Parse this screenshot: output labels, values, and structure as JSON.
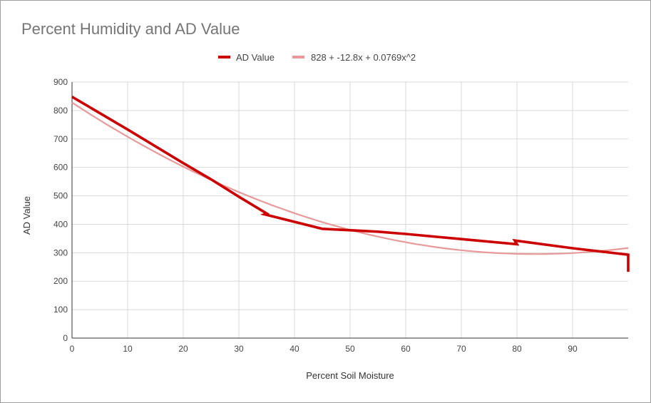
{
  "chart_data": {
    "type": "line",
    "title": "Percent Humidity and AD Value",
    "xlabel": "Percent Soil Moisture",
    "ylabel": "AD Value",
    "xlim": [
      0,
      100
    ],
    "ylim": [
      0,
      900
    ],
    "x_ticks": [
      "0",
      "10",
      "20",
      "30",
      "40",
      "50",
      "60",
      "70",
      "80",
      "90"
    ],
    "y_ticks": [
      "0",
      "100",
      "200",
      "300",
      "400",
      "500",
      "600",
      "700",
      "800",
      "900"
    ],
    "grid": true,
    "legend_position": "top",
    "series": [
      {
        "name": "AD Value",
        "color": "#cc0000",
        "points": [
          [
            0,
            848
          ],
          [
            10,
            733
          ],
          [
            20,
            615
          ],
          [
            25,
            558
          ],
          [
            30,
            497
          ],
          [
            35,
            438
          ],
          [
            34.6,
            435
          ],
          [
            45,
            384
          ],
          [
            55,
            374
          ],
          [
            60,
            366
          ],
          [
            70,
            348
          ],
          [
            80,
            330
          ],
          [
            79.6,
            343
          ],
          [
            90,
            316
          ],
          [
            100,
            293
          ],
          [
            100,
            233
          ]
        ]
      },
      {
        "name": "828 + -12.8x + 0.0769x^2",
        "color": "#e89999",
        "trendline": {
          "a": 828,
          "b": -12.8,
          "c": 0.0769
        }
      }
    ]
  }
}
